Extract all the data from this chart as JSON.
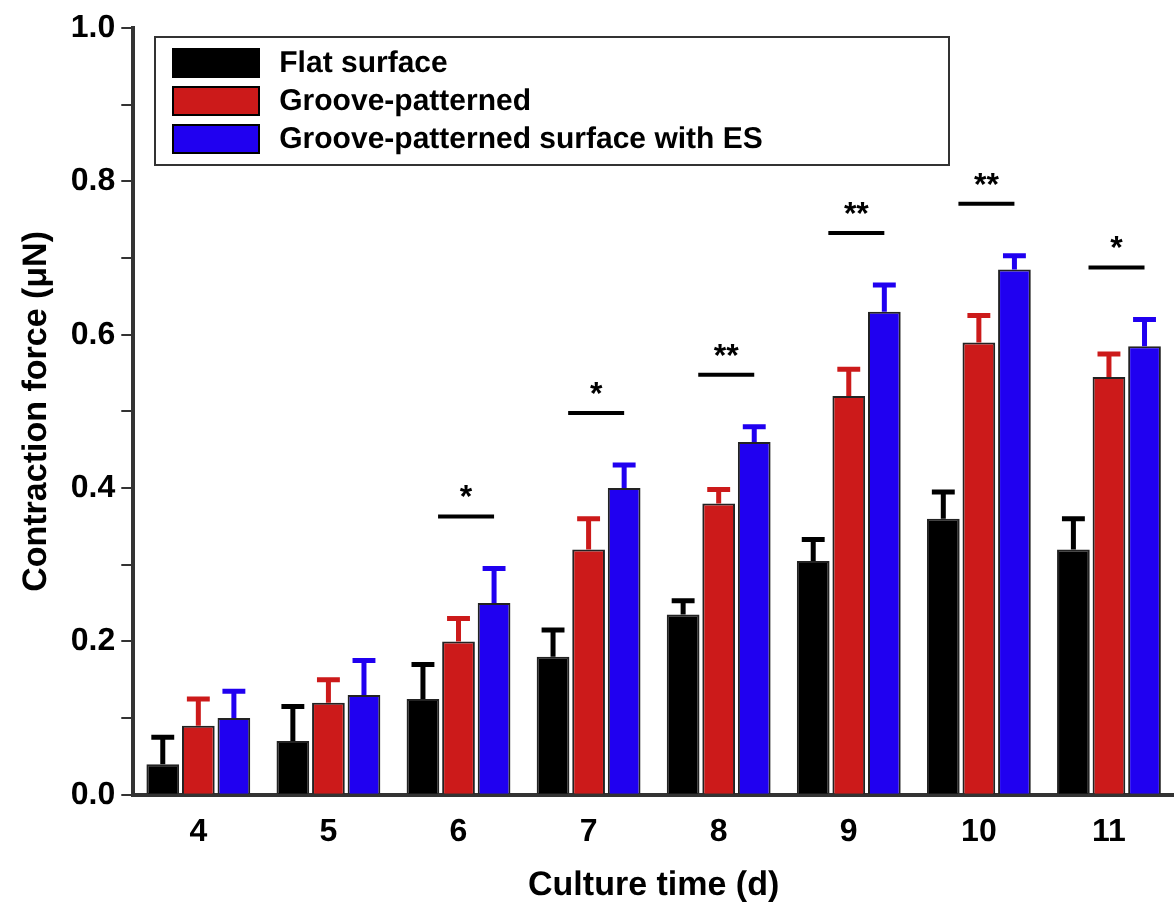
{
  "chart_data": {
    "type": "bar",
    "xlabel": "Culture time (d)",
    "ylabel": "Contraction force (μN)",
    "categories": [
      "4",
      "5",
      "6",
      "7",
      "8",
      "9",
      "10",
      "11"
    ],
    "series": [
      {
        "name": "Flat surface",
        "color": "#000000",
        "values": [
          0.04,
          0.07,
          0.125,
          0.18,
          0.235,
          0.305,
          0.36,
          0.32
        ],
        "errors": [
          [
            0.04,
            0.075
          ],
          [
            0.07,
            0.115
          ],
          [
            0.125,
            0.17
          ],
          [
            0.18,
            0.215
          ],
          [
            0.235,
            0.253
          ],
          [
            0.305,
            0.333
          ],
          [
            0.36,
            0.395
          ],
          [
            0.32,
            0.36
          ]
        ]
      },
      {
        "name": "Groove-patterned",
        "color": "#cc1a1a",
        "values": [
          0.09,
          0.12,
          0.2,
          0.32,
          0.38,
          0.52,
          0.59,
          0.545
        ],
        "errors": [
          [
            0.09,
            0.125
          ],
          [
            0.12,
            0.15
          ],
          [
            0.2,
            0.23
          ],
          [
            0.32,
            0.36
          ],
          [
            0.38,
            0.398
          ],
          [
            0.52,
            0.555
          ],
          [
            0.59,
            0.625
          ],
          [
            0.545,
            0.575
          ]
        ]
      },
      {
        "name": "Groove-patterned surface with ES",
        "color": "#2000f0",
        "values": [
          0.1,
          0.13,
          0.25,
          0.4,
          0.46,
          0.63,
          0.685,
          0.585
        ],
        "errors": [
          [
            0.1,
            0.135
          ],
          [
            0.13,
            0.175
          ],
          [
            0.25,
            0.295
          ],
          [
            0.4,
            0.43
          ],
          [
            0.46,
            0.48
          ],
          [
            0.63,
            0.665
          ],
          [
            0.685,
            0.703
          ],
          [
            0.585,
            0.62
          ]
        ]
      }
    ],
    "ylim": [
      0,
      1
    ],
    "yticks": [
      {
        "value": 0,
        "label": "0.0"
      },
      {
        "value": 0.1,
        "label": null
      },
      {
        "value": 0.2,
        "label": "0.2"
      },
      {
        "value": 0.3,
        "label": null
      },
      {
        "value": 0.4,
        "label": "0.4"
      },
      {
        "value": 0.5,
        "label": null
      },
      {
        "value": 0.6,
        "label": "0.6"
      },
      {
        "value": 0.7,
        "label": null
      },
      {
        "value": 0.8,
        "label": "0.8"
      },
      {
        "value": 0.9,
        "label": null
      },
      {
        "value": 1,
        "label": "1.0"
      }
    ],
    "annotations": [
      "*",
      "*",
      "**",
      "**",
      "**",
      "*"
    ],
    "legend": "top left",
    "grid": false
  }
}
